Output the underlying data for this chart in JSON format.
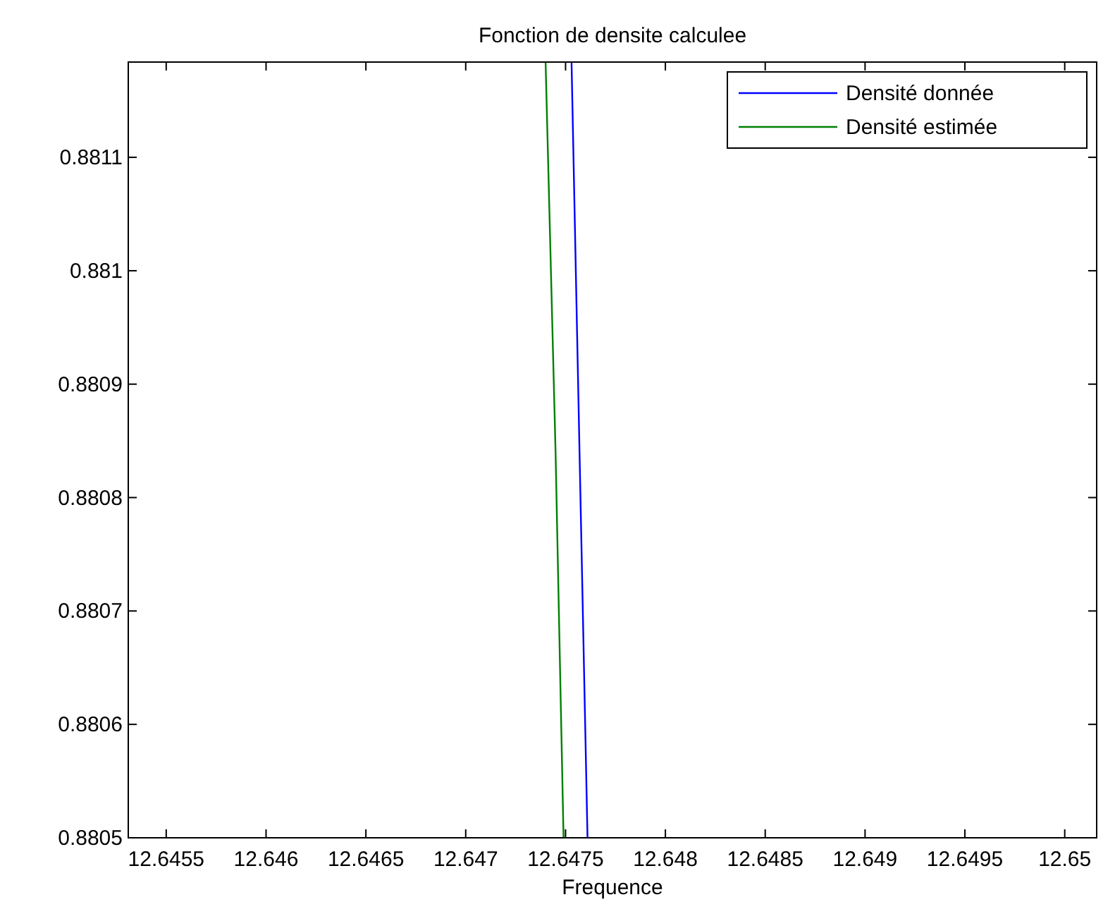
{
  "chart_data": {
    "type": "line",
    "title": "Fonction de densite calculee",
    "xlabel": "Frequence",
    "xlim": [
      12.64531,
      12.65016
    ],
    "ylim": [
      0.8805,
      0.881184
    ],
    "xticks": [
      12.6455,
      12.646,
      12.6465,
      12.647,
      12.6475,
      12.648,
      12.6485,
      12.649,
      12.6495,
      12.65
    ],
    "yticks": [
      0.8805,
      0.8806,
      0.8807,
      0.8808,
      0.8809,
      0.881,
      0.8811
    ],
    "grid": false,
    "legend": "top right",
    "line_style": "solid",
    "marker": "none",
    "series": [
      {
        "name": "Densité donnée",
        "color": "#0000ff",
        "x": [
          12.64753,
          12.64757,
          12.64761
        ],
        "values": [
          0.881184,
          0.88084,
          0.8805
        ]
      },
      {
        "name": "Densité estimée",
        "color": "#008000",
        "x": [
          12.6474,
          12.64745,
          12.64749
        ],
        "values": [
          0.881184,
          0.88084,
          0.8805
        ]
      }
    ]
  }
}
